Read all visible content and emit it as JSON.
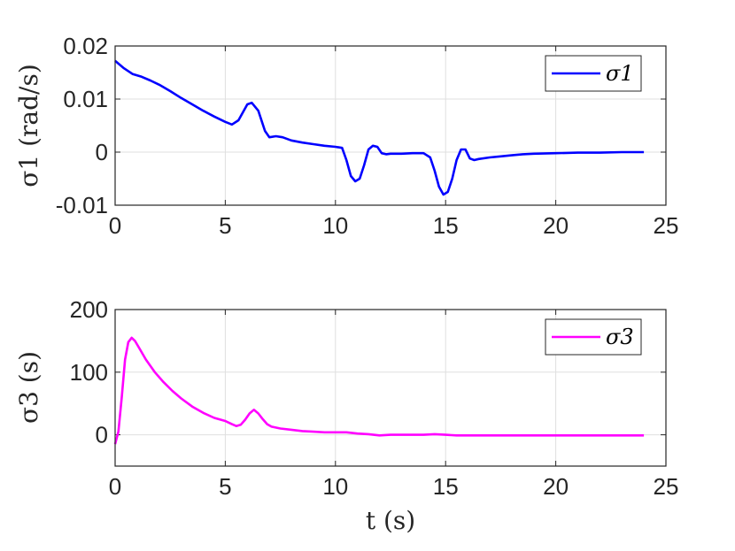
{
  "chart_data": [
    {
      "type": "line",
      "xlim": [
        0,
        25
      ],
      "ylim": [
        -0.01,
        0.02
      ],
      "xticks": [
        "0",
        "5",
        "10",
        "15",
        "20",
        "25"
      ],
      "yticks": [
        "-0.01",
        "0",
        "0.01",
        "0.02"
      ],
      "ylabel": "σ1 (rad/s)",
      "xlabel": "",
      "grid": true,
      "legend_position": "top-right",
      "series": [
        {
          "name": "σ1",
          "color": "#0000ff",
          "x": [
            0,
            0.4,
            0.8,
            1.2,
            1.6,
            2,
            2.5,
            3,
            3.5,
            4,
            4.5,
            5,
            5.3,
            5.6,
            5.8,
            6,
            6.2,
            6.5,
            6.8,
            7,
            7.3,
            7.6,
            8,
            8.5,
            9,
            9.5,
            10,
            10.3,
            10.5,
            10.7,
            10.9,
            11.1,
            11.3,
            11.5,
            11.7,
            11.9,
            12.1,
            12.3,
            12.5,
            13,
            13.5,
            14,
            14.3,
            14.5,
            14.7,
            14.9,
            15.1,
            15.3,
            15.5,
            15.7,
            15.9,
            16.1,
            16.3,
            16.5,
            17,
            17.5,
            18,
            18.5,
            19,
            20,
            21,
            22,
            23,
            24
          ],
          "y": [
            0.0172,
            0.0158,
            0.0147,
            0.0142,
            0.0135,
            0.0127,
            0.0115,
            0.0102,
            0.009,
            0.0078,
            0.0067,
            0.0057,
            0.0052,
            0.006,
            0.0075,
            0.009,
            0.0093,
            0.0078,
            0.004,
            0.0028,
            0.003,
            0.0028,
            0.0022,
            0.0018,
            0.0015,
            0.0012,
            0.001,
            0.0008,
            -0.0015,
            -0.0045,
            -0.0055,
            -0.005,
            -0.0025,
            0.0005,
            0.0012,
            0.001,
            -0.0002,
            -0.0004,
            -0.0003,
            -0.0003,
            -0.0002,
            -0.0002,
            -0.001,
            -0.0035,
            -0.0065,
            -0.008,
            -0.0075,
            -0.005,
            -0.0015,
            0.0005,
            0.0005,
            -0.0012,
            -0.0015,
            -0.0013,
            -0.001,
            -0.0008,
            -0.0006,
            -0.0004,
            -0.0003,
            -0.0002,
            -0.0001,
            -0.0001,
            0,
            0
          ]
        }
      ]
    },
    {
      "type": "line",
      "xlim": [
        0,
        25
      ],
      "ylim": [
        -50,
        200
      ],
      "xticks": [
        "0",
        "5",
        "10",
        "15",
        "20",
        "25"
      ],
      "yticks": [
        "0",
        "100",
        "200"
      ],
      "ylabel": "σ3 (s)",
      "xlabel": "t (s)",
      "grid": true,
      "legend_position": "top-right",
      "series": [
        {
          "name": "σ3",
          "color": "#ff00ff",
          "x": [
            0,
            0.15,
            0.3,
            0.45,
            0.6,
            0.75,
            0.9,
            1.1,
            1.4,
            1.8,
            2.2,
            2.6,
            3,
            3.5,
            4,
            4.5,
            5,
            5.3,
            5.5,
            5.7,
            5.9,
            6.1,
            6.3,
            6.5,
            6.7,
            6.9,
            7.1,
            7.5,
            8,
            8.5,
            9,
            9.5,
            10,
            10.5,
            11,
            11.5,
            12,
            12.5,
            13,
            13.5,
            14,
            14.5,
            15,
            15.5,
            16,
            17,
            18,
            19,
            20,
            22,
            24
          ],
          "y": [
            -15,
            5,
            60,
            120,
            148,
            155,
            150,
            138,
            120,
            100,
            84,
            70,
            58,
            45,
            35,
            27,
            22,
            17,
            14,
            16,
            24,
            34,
            40,
            34,
            25,
            17,
            13,
            10,
            8,
            6,
            5,
            4,
            4,
            4,
            2,
            1,
            -1,
            0,
            0,
            0,
            0,
            1,
            0,
            -1,
            -1,
            -1,
            -1,
            -1,
            -1,
            -1,
            -1
          ]
        }
      ]
    }
  ]
}
